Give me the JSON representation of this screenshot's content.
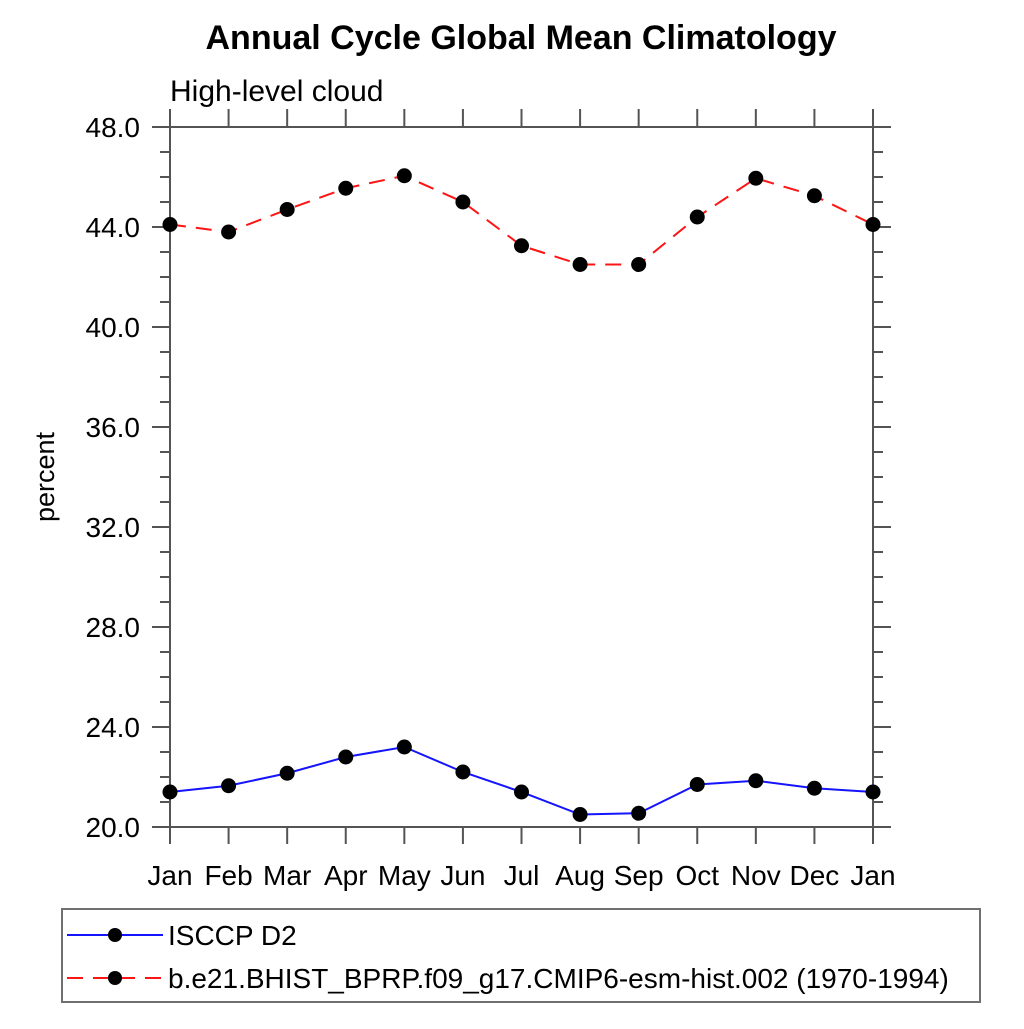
{
  "title": "Annual Cycle Global Mean Climatology",
  "subtitle": "High-level cloud",
  "colors": {
    "series1": "#1414ff",
    "series2": "#ff1414",
    "marker": "#000000",
    "axis": "#545454"
  },
  "chart_data": {
    "type": "line",
    "title": "Annual Cycle Global Mean Climatology",
    "subtitle": "High-level cloud",
    "xlabel": "",
    "ylabel": "percent",
    "categories": [
      "Jan",
      "Feb",
      "Mar",
      "Apr",
      "May",
      "Jun",
      "Jul",
      "Aug",
      "Sep",
      "Oct",
      "Nov",
      "Dec",
      "Jan"
    ],
    "series": [
      {
        "name": "ISCCP D2",
        "color": "#1414ff",
        "line_style": "solid",
        "marker": "filled-circle",
        "values": [
          21.4,
          21.65,
          22.15,
          22.8,
          23.2,
          22.2,
          21.4,
          20.5,
          20.55,
          21.7,
          21.85,
          21.55,
          21.4
        ]
      },
      {
        "name": "b.e21.BHIST_BPRP.f09_g17.CMIP6-esm-hist.002 (1970-1994)",
        "color": "#ff1414",
        "line_style": "dashed",
        "marker": "filled-circle",
        "values": [
          44.1,
          43.8,
          44.7,
          45.55,
          46.05,
          45.0,
          43.25,
          42.5,
          42.5,
          44.4,
          45.95,
          45.25,
          44.1
        ]
      }
    ],
    "ylim": [
      20.0,
      48.0
    ],
    "ytick_major_step": 4,
    "ytick_minor_step": 1,
    "ytick_label_format_decimals": 1,
    "ytick_major_labels": [
      "20.0",
      "24.0",
      "28.0",
      "32.0",
      "36.0",
      "40.0",
      "44.0",
      "48.0"
    ],
    "grid": false,
    "frame": "box-with-outward-ticks",
    "legend_position": "bottom-left-box"
  }
}
